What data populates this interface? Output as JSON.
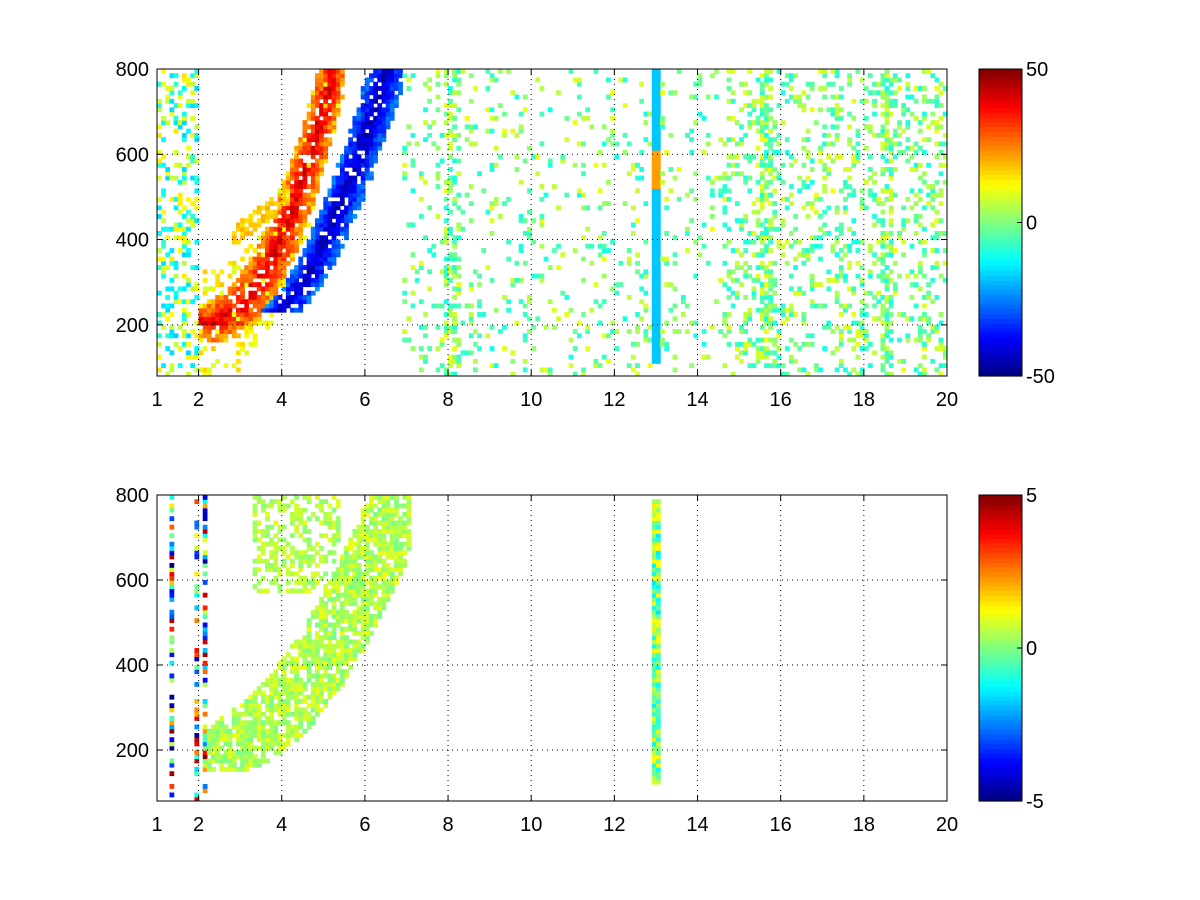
{
  "chart_data": [
    {
      "type": "heatmap",
      "title": "",
      "xlabel": "",
      "ylabel": "",
      "xlim": [
        1,
        20
      ],
      "ylim": [
        80,
        800
      ],
      "xticks": [
        1,
        2,
        4,
        6,
        8,
        10,
        12,
        14,
        16,
        18,
        20
      ],
      "yticks": [
        200,
        400,
        600,
        800
      ],
      "grid": true,
      "grid_style": "dotted",
      "colormap": "jet",
      "colorbar": {
        "min": -50,
        "max": 50,
        "ticks": [
          -50,
          0,
          50
        ]
      },
      "features": [
        {
          "name": "positive curved band",
          "x_range": [
            2,
            5.2
          ],
          "y_range": [
            200,
            800
          ],
          "approx_value": 30
        },
        {
          "name": "negative curved band",
          "x_range": [
            4,
            6.5
          ],
          "y_range": [
            200,
            800
          ],
          "approx_value": -35
        },
        {
          "name": "vertical stripe",
          "x": 13,
          "y_range": [
            100,
            800
          ],
          "approx_value": -20
        }
      ]
    },
    {
      "type": "heatmap",
      "title": "",
      "xlabel": "",
      "ylabel": "",
      "xlim": [
        1,
        20
      ],
      "ylim": [
        80,
        800
      ],
      "xticks": [
        1,
        2,
        4,
        6,
        8,
        10,
        12,
        14,
        16,
        18,
        20
      ],
      "yticks": [
        200,
        400,
        600,
        800
      ],
      "grid": true,
      "grid_style": "dotted",
      "colormap": "jet",
      "colorbar": {
        "min": -5,
        "max": 5,
        "ticks": [
          -5,
          0,
          5
        ]
      },
      "features": [
        {
          "name": "near-zero curved band",
          "x_range": [
            2,
            7
          ],
          "y_range": [
            200,
            800
          ],
          "approx_value": 0.5
        },
        {
          "name": "vertical stripe",
          "x": 13,
          "y_range": [
            110,
            790
          ],
          "approx_value": 0.5
        }
      ]
    }
  ]
}
